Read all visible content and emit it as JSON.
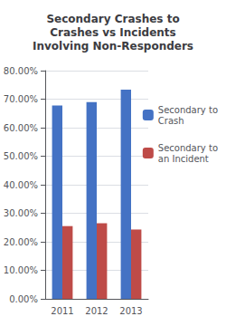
{
  "chart_data": {
    "type": "bar",
    "title": "Secondary Crashes to\nCrashes vs Incidents\nInvolving Non-Responders",
    "categories": [
      "2011",
      "2012",
      "2013"
    ],
    "series": [
      {
        "name": "Secondary to\nCrash",
        "color": "#4472C4",
        "values": [
          0.678,
          0.69,
          0.733
        ]
      },
      {
        "name": "Secondary to\nan Incident",
        "color": "#BE4B48",
        "values": [
          0.255,
          0.265,
          0.243
        ]
      }
    ],
    "ylim": [
      0.0,
      0.8
    ],
    "yticks": [
      {
        "value": 0.0,
        "label": "0.00%"
      },
      {
        "value": 0.1,
        "label": "10.00%"
      },
      {
        "value": 0.2,
        "label": "20.00%"
      },
      {
        "value": 0.3,
        "label": "30.00%"
      },
      {
        "value": 0.4,
        "label": "40.00%"
      },
      {
        "value": 0.5,
        "label": "50.00%"
      },
      {
        "value": 0.6,
        "label": "60.00%"
      },
      {
        "value": 0.7,
        "label": "70.00%"
      },
      {
        "value": 0.8,
        "label": "80.00%"
      }
    ],
    "grid": true,
    "legend": "right"
  }
}
